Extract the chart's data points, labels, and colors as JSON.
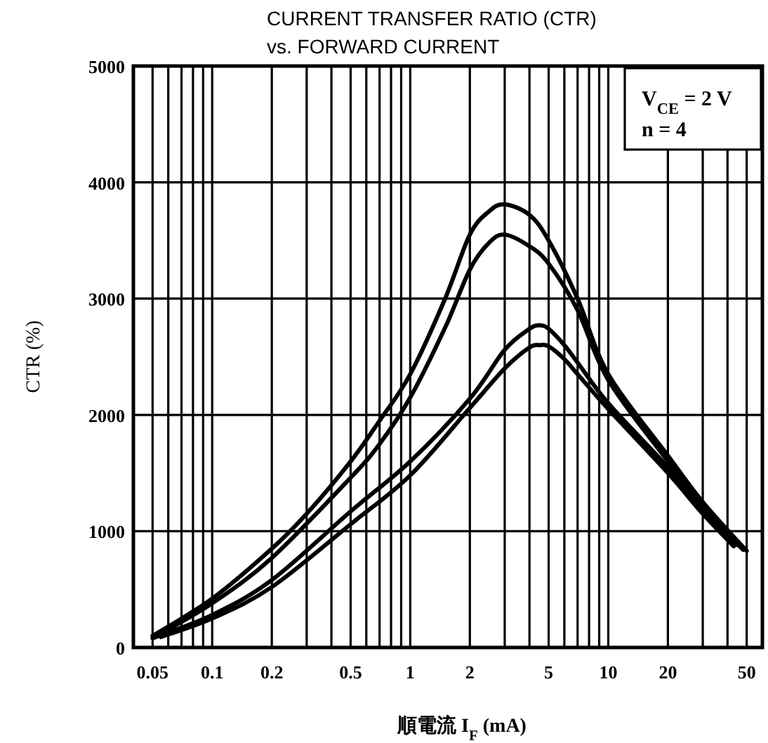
{
  "chart_data": {
    "type": "line",
    "title": "CURRENT TRANSFER RATIO (CTR)",
    "subtitle": "vs. FORWARD CURRENT",
    "xlabel": "順電流 I$_{F}$ (mA)",
    "ylabel": "CTR (%)",
    "annotations": [
      "V$_{CE}$ = 2 V",
      "n = 4"
    ],
    "log": "x",
    "grid": true,
    "line_style": "solid",
    "marker": "none",
    "xlim": [
      0.04,
      60
    ],
    "ylim": [
      0,
      5000
    ],
    "xticks": [
      {
        "value": 0.04,
        "label": null
      },
      0.05,
      {
        "value": 0.06,
        "label": null
      },
      {
        "value": 0.07,
        "label": null
      },
      {
        "value": 0.08,
        "label": null
      },
      {
        "value": 0.09,
        "label": null
      },
      0.1,
      0.2,
      {
        "value": 0.3,
        "label": null
      },
      {
        "value": 0.4,
        "label": null
      },
      0.5,
      {
        "value": 0.6,
        "label": null
      },
      {
        "value": 0.7,
        "label": null
      },
      {
        "value": 0.8,
        "label": null
      },
      {
        "value": 0.9,
        "label": null
      },
      1,
      2,
      {
        "value": 3,
        "label": null
      },
      {
        "value": 4,
        "label": null
      },
      5,
      {
        "value": 6,
        "label": null
      },
      {
        "value": 7,
        "label": null
      },
      {
        "value": 8,
        "label": null
      },
      {
        "value": 9,
        "label": null
      },
      10,
      20,
      {
        "value": 30,
        "label": null
      },
      {
        "value": 40,
        "label": null
      },
      50,
      {
        "value": 60,
        "label": null
      }
    ],
    "yticks": [
      0,
      1000,
      2000,
      3000,
      4000,
      5000
    ],
    "series": [
      {
        "color": "#000000",
        "x": [
          0.05,
          0.1,
          0.2,
          0.3,
          0.5,
          0.7,
          1,
          1.5,
          2,
          2.5,
          3,
          4,
          5,
          7,
          10,
          20,
          30,
          50
        ],
        "values": [
          100,
          420,
          850,
          1150,
          1600,
          1950,
          2350,
          3000,
          3550,
          3750,
          3810,
          3720,
          3500,
          3000,
          2350,
          1650,
          1250,
          830
        ]
      },
      {
        "color": "#000000",
        "x": [
          0.055,
          0.1,
          0.2,
          0.5,
          0.7,
          1,
          1.5,
          2,
          2.5,
          3,
          4,
          5,
          7,
          10,
          20,
          30,
          45
        ],
        "values": [
          120,
          380,
          770,
          1460,
          1750,
          2150,
          2750,
          3250,
          3480,
          3550,
          3450,
          3300,
          2900,
          2300,
          1600,
          1200,
          880
        ]
      },
      {
        "color": "#000000",
        "x": [
          0.05,
          0.1,
          0.2,
          0.5,
          1,
          2,
          3,
          4,
          4.5,
          5,
          6,
          7,
          10,
          20,
          30,
          48
        ],
        "values": [
          80,
          280,
          580,
          1170,
          1600,
          2140,
          2560,
          2740,
          2770,
          2740,
          2600,
          2450,
          2100,
          1550,
          1200,
          840
        ]
      },
      {
        "color": "#000000",
        "x": [
          0.055,
          0.1,
          0.2,
          0.5,
          1,
          2,
          3,
          4,
          4.5,
          5,
          6,
          7,
          10,
          20,
          30,
          43
        ],
        "values": [
          90,
          250,
          520,
          1060,
          1480,
          2060,
          2400,
          2580,
          2600,
          2590,
          2480,
          2350,
          2050,
          1500,
          1150,
          870
        ]
      }
    ]
  }
}
